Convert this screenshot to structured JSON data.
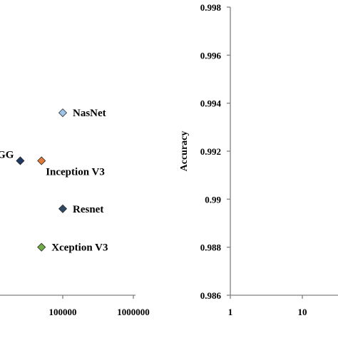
{
  "chart_data": [
    {
      "type": "scatter",
      "x_scale": "log",
      "xlim": [
        10000,
        1000000
      ],
      "x_tick_labels": [
        "100000",
        "1000000"
      ],
      "x_tick_partial": "00",
      "points": [
        {
          "label": "GG",
          "x": 25000,
          "y": 0.9916,
          "color": "#1f3864"
        },
        {
          "label": "Inception V3",
          "x": 50000,
          "y": 0.9916,
          "color": "#e07b39"
        },
        {
          "label": "NasNet",
          "x": 100000,
          "y": 0.9936,
          "color": "#9dc3e6"
        },
        {
          "label": "Resnet",
          "x": 100000,
          "y": 0.9896,
          "color": "#2e4a62"
        },
        {
          "label": "Xception V3",
          "x": 50000,
          "y": 0.988,
          "color": "#70ad47"
        }
      ]
    },
    {
      "type": "scatter",
      "x_scale": "log",
      "ylabel": "Accuracy",
      "ylim": [
        0.986,
        0.998
      ],
      "y_ticks": [
        "0.986",
        "0.988",
        "0.99",
        "0.992",
        "0.994",
        "0.996",
        "0.998"
      ],
      "x_tick_labels": [
        "1",
        "10"
      ],
      "points": []
    }
  ]
}
